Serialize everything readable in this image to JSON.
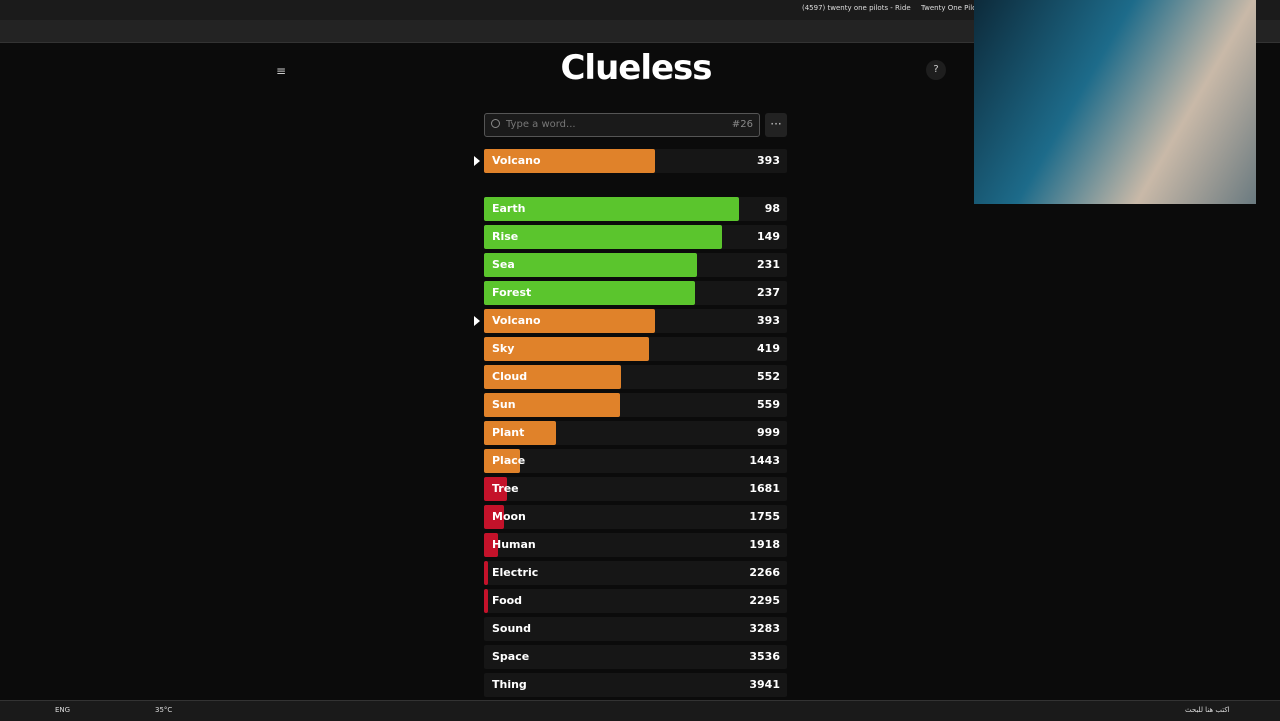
{
  "browser": {
    "tabs": [
      "(4597) twenty one pilots - Ride",
      "Twenty One Pilots T"
    ]
  },
  "header": {
    "title": "Clueless"
  },
  "search": {
    "placeholder": "Type a word...",
    "game_number": "#26"
  },
  "current_guess": {
    "word": "Volcano",
    "rank": 393,
    "color": "#e0822a"
  },
  "guesses": [
    {
      "word": "Earth",
      "rank": 98,
      "color": "#5bc52d"
    },
    {
      "word": "Rise",
      "rank": 149,
      "color": "#5bc52d"
    },
    {
      "word": "Sea",
      "rank": 231,
      "color": "#5bc52d"
    },
    {
      "word": "Forest",
      "rank": 237,
      "color": "#5bc52d"
    },
    {
      "word": "Volcano",
      "rank": 393,
      "color": "#e0822a",
      "highlighted": true
    },
    {
      "word": "Sky",
      "rank": 419,
      "color": "#e0822a"
    },
    {
      "word": "Cloud",
      "rank": 552,
      "color": "#e0822a"
    },
    {
      "word": "Sun",
      "rank": 559,
      "color": "#e0822a"
    },
    {
      "word": "Plant",
      "rank": 999,
      "color": "#e0822a"
    },
    {
      "word": "Place",
      "rank": 1443,
      "color": "#e0822a"
    },
    {
      "word": "Tree",
      "rank": 1681,
      "color": "#c4122a"
    },
    {
      "word": "Moon",
      "rank": 1755,
      "color": "#c4122a"
    },
    {
      "word": "Human",
      "rank": 1918,
      "color": "#c4122a"
    },
    {
      "word": "Electric",
      "rank": 2266,
      "color": "#c4122a"
    },
    {
      "word": "Food",
      "rank": 2295,
      "color": "#c4122a"
    },
    {
      "word": "Sound",
      "rank": 3283,
      "color": "#c4122a"
    },
    {
      "word": "Space",
      "rank": 3536,
      "color": "#c4122a"
    },
    {
      "word": "Thing",
      "rank": 3941,
      "color": "#c4122a"
    }
  ],
  "taskbar": {
    "language": "ENG",
    "weather": "35°C",
    "search": "اكتب هنا للبحث"
  }
}
